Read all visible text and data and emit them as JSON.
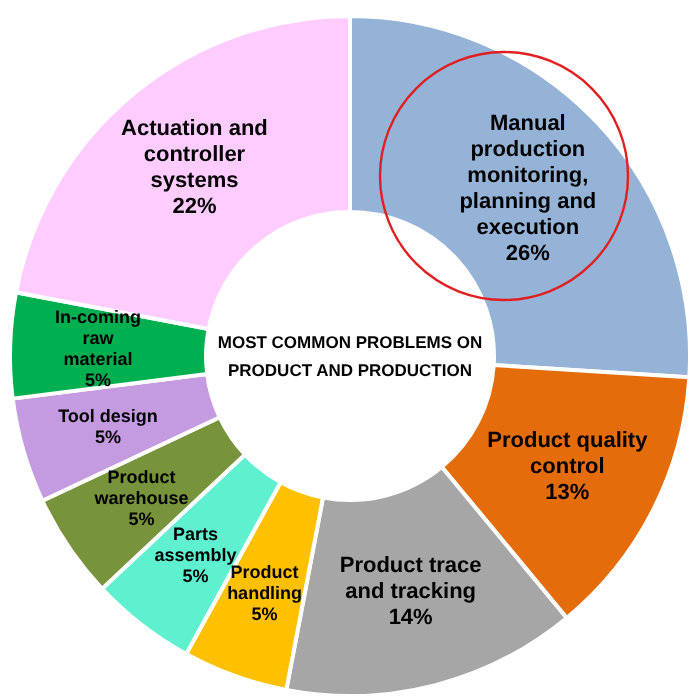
{
  "chart_data": {
    "type": "donut",
    "title": "MOST COMMON PROBLEMS ON PRODUCT AND PRODUCTION",
    "categories": [
      "Manual production monitoring, planning and execution",
      "Product quality control",
      "Product trace and tracking",
      "Product handling",
      "Parts assembly",
      "Product warehouse",
      "Tool design",
      "In-coming raw material",
      "Actuation and controller systems"
    ],
    "values": [
      26,
      13,
      14,
      5,
      5,
      5,
      5,
      5,
      22
    ],
    "value_labels": [
      "26%",
      "13%",
      "14%",
      "5%",
      "5%",
      "5%",
      "5%",
      "5%",
      "22%"
    ],
    "colors": [
      "#95b3d7",
      "#e46c0a",
      "#a6a6a6",
      "#ffc000",
      "#5ff0d0",
      "#77933c",
      "#c49be0",
      "#00b050",
      "#ffccff"
    ],
    "legend": false
  }
}
